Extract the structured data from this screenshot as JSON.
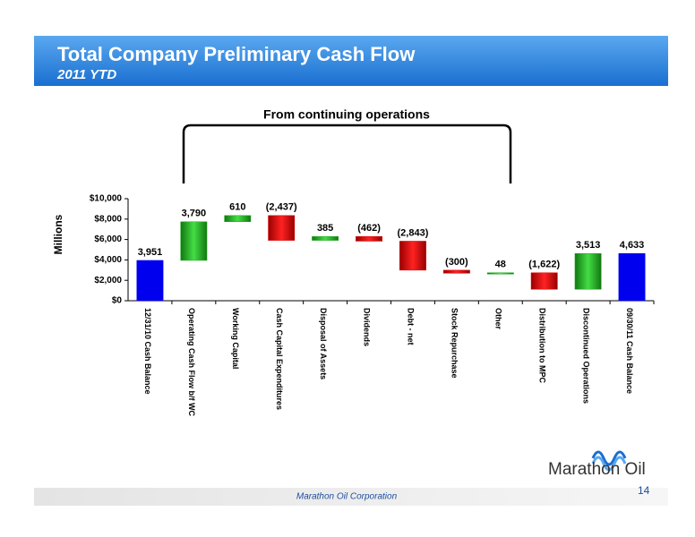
{
  "header": {
    "title": "Total Company Preliminary Cash Flow",
    "subtitle": "2011 YTD"
  },
  "chart_data": {
    "type": "waterfall",
    "annotation": "From continuing operations",
    "y_label": "Millions",
    "categories": [
      "12/31/10 Cash Balance",
      "Operating Cash Flow b/f WC",
      "Working Capital",
      "Cash Capital Expenditures",
      "Disposal of Assets",
      "Dividends",
      "Debt - net",
      "Stock Repurchase",
      "Other",
      "Distribution to MPC",
      "Discontinued Operations",
      "09/30/11 Cash Balance"
    ],
    "values": [
      3951,
      3790,
      610,
      -2437,
      385,
      -462,
      -2843,
      -300,
      48,
      -1622,
      3513,
      4633
    ],
    "value_labels": [
      "3,951",
      "3,790",
      "610",
      "(2,437)",
      "385",
      "(462)",
      "(2,843)",
      "(300)",
      "48",
      "(1,622)",
      "3,513",
      "4,633"
    ],
    "totals": [
      0,
      11
    ],
    "colors": {
      "total": "#0000ee",
      "increase": "#22a822",
      "decrease": "#dd0000"
    },
    "ylim": [
      0,
      10000
    ],
    "yticks": [
      {
        "value": 0,
        "label": "$0"
      },
      {
        "value": 2000,
        "label": "$2,000"
      },
      {
        "value": 4000,
        "label": "$4,000"
      },
      {
        "value": 6000,
        "label": "$6,000"
      },
      {
        "value": 8000,
        "label": "$8,000"
      },
      {
        "value": 10000,
        "label": "$10,000"
      }
    ]
  },
  "footer": {
    "company": "Marathon Oil Corporation",
    "page": "14",
    "logo": "Marathon Oil"
  }
}
